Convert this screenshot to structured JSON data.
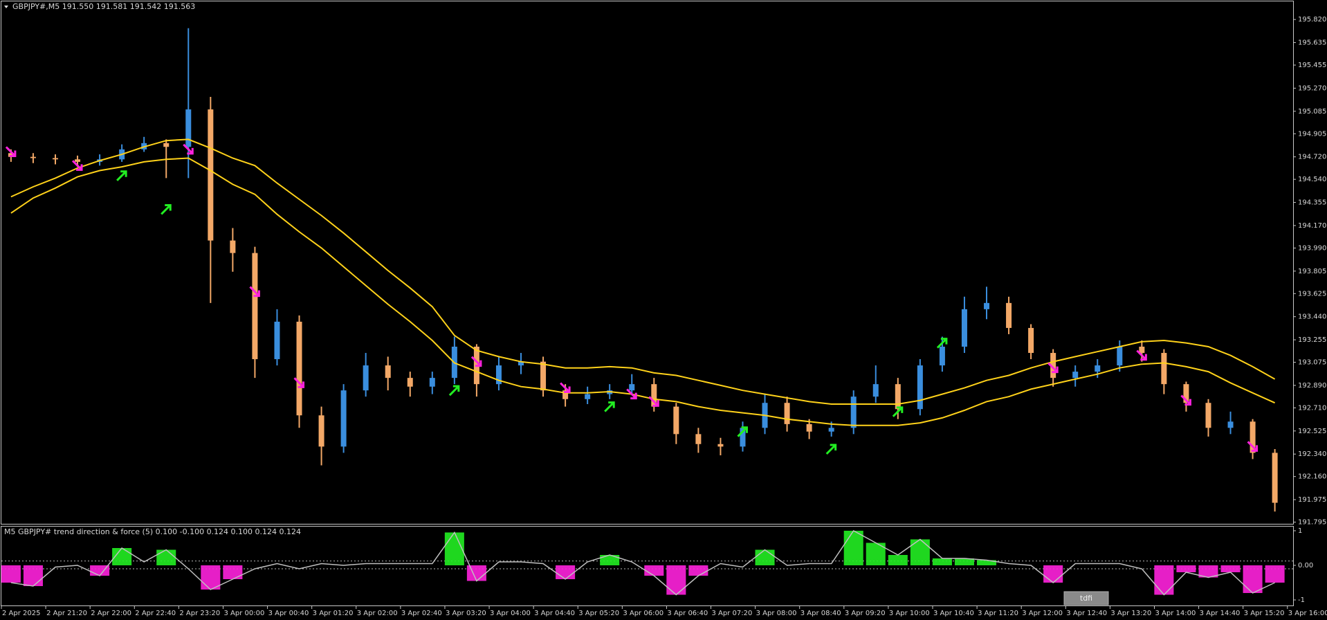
{
  "chart_data": {
    "type": "candlestick",
    "title": "GBPJPY#,M5  191.550 191.581 191.542 191.563",
    "colors": {
      "up": "#3a8ede",
      "down": "#f3a867",
      "band": "#ffd21a",
      "buy": "#22ee22",
      "sell": "#ff22dd",
      "background": "#000000",
      "axis": "#c8c8c8"
    },
    "x_labels": [
      "2 Apr 2025",
      "2 Apr 21:20",
      "2 Apr 22:00",
      "2 Apr 22:40",
      "2 Apr 23:20",
      "3 Apr 00:00",
      "3 Apr 00:40",
      "3 Apr 01:20",
      "3 Apr 02:00",
      "3 Apr 02:40",
      "3 Apr 03:20",
      "3 Apr 04:00",
      "3 Apr 04:40",
      "3 Apr 05:20",
      "3 Apr 06:00",
      "3 Apr 06:40",
      "3 Apr 07:20",
      "3 Apr 08:00",
      "3 Apr 08:40",
      "3 Apr 09:20",
      "3 Apr 10:00",
      "3 Apr 10:40",
      "3 Apr 11:20",
      "3 Apr 12:00",
      "3 Apr 12:40",
      "3 Apr 13:20",
      "3 Apr 14:00",
      "3 Apr 14:40",
      "3 Apr 15:20",
      "3 Apr 16:00"
    ],
    "open": [
      194.75,
      194.72,
      194.71,
      194.7,
      194.68,
      194.7,
      194.78,
      194.83,
      194.8,
      195.1,
      194.05,
      193.95,
      193.1,
      193.4,
      192.65,
      192.4,
      192.85,
      193.05,
      192.95,
      192.88,
      192.95,
      193.2,
      192.9,
      193.05,
      193.08,
      192.85,
      192.78,
      192.82,
      192.85,
      192.9,
      192.72,
      192.5,
      192.42,
      192.4,
      192.55,
      192.75,
      192.58,
      192.52,
      192.55,
      192.8,
      192.9,
      192.7,
      193.05,
      193.2,
      193.5,
      193.55,
      193.35,
      193.15,
      192.95,
      193.0,
      193.05,
      193.2,
      193.15,
      192.9,
      192.75,
      192.55,
      192.6,
      192.35
    ],
    "high": [
      194.78,
      194.75,
      194.74,
      194.73,
      194.74,
      194.82,
      194.88,
      194.86,
      195.75,
      195.2,
      194.15,
      194.0,
      193.5,
      193.45,
      192.72,
      192.9,
      193.15,
      193.12,
      193.0,
      193.0,
      193.28,
      193.22,
      193.12,
      193.15,
      193.12,
      192.9,
      192.88,
      192.9,
      192.98,
      192.95,
      192.75,
      192.55,
      192.47,
      192.6,
      192.82,
      192.8,
      192.62,
      192.6,
      192.85,
      193.05,
      192.95,
      193.1,
      193.28,
      193.6,
      193.68,
      193.6,
      193.38,
      193.18,
      193.05,
      193.1,
      193.25,
      193.25,
      193.18,
      192.92,
      192.78,
      192.68,
      192.62,
      192.38
    ],
    "low": [
      194.68,
      194.67,
      194.66,
      194.64,
      194.65,
      194.68,
      194.76,
      194.55,
      194.55,
      193.55,
      193.8,
      192.95,
      193.05,
      192.55,
      192.25,
      192.35,
      192.8,
      192.85,
      192.8,
      192.82,
      192.9,
      192.8,
      192.85,
      192.98,
      192.8,
      192.72,
      192.74,
      192.78,
      192.82,
      192.68,
      192.42,
      192.35,
      192.33,
      192.36,
      192.5,
      192.52,
      192.46,
      192.48,
      192.5,
      192.75,
      192.62,
      192.65,
      193.0,
      193.15,
      193.42,
      193.3,
      193.1,
      192.88,
      192.88,
      192.95,
      193.0,
      193.08,
      192.82,
      192.68,
      192.48,
      192.5,
      192.3,
      191.88
    ],
    "close": [
      194.72,
      194.71,
      194.7,
      194.68,
      194.7,
      194.78,
      194.83,
      194.8,
      195.1,
      194.05,
      193.95,
      193.1,
      193.4,
      192.65,
      192.4,
      192.85,
      193.05,
      192.95,
      192.88,
      192.95,
      193.2,
      192.9,
      193.05,
      193.08,
      192.85,
      192.78,
      192.82,
      192.85,
      192.9,
      192.72,
      192.5,
      192.42,
      192.4,
      192.55,
      192.75,
      192.58,
      192.52,
      192.55,
      192.8,
      192.9,
      192.7,
      193.05,
      193.2,
      193.5,
      193.55,
      193.35,
      193.15,
      192.95,
      193.0,
      193.05,
      193.2,
      193.15,
      192.9,
      192.75,
      192.55,
      192.6,
      192.35,
      191.95
    ],
    "band_upper": [
      194.4,
      194.48,
      194.55,
      194.63,
      194.69,
      194.74,
      194.8,
      194.85,
      194.86,
      194.79,
      194.71,
      194.65,
      194.51,
      194.38,
      194.25,
      194.11,
      193.96,
      193.81,
      193.67,
      193.52,
      193.29,
      193.17,
      193.12,
      193.08,
      193.06,
      193.03,
      193.03,
      193.04,
      193.03,
      192.99,
      192.97,
      192.93,
      192.89,
      192.85,
      192.82,
      192.79,
      192.76,
      192.74,
      192.74,
      192.74,
      192.74,
      192.77,
      192.82,
      192.87,
      192.93,
      192.97,
      193.03,
      193.08,
      193.12,
      193.16,
      193.2,
      193.24,
      193.25,
      193.23,
      193.2,
      193.13,
      193.04,
      192.94
    ],
    "band_lower": [
      194.27,
      194.39,
      194.47,
      194.56,
      194.61,
      194.64,
      194.68,
      194.7,
      194.71,
      194.61,
      194.5,
      194.42,
      194.26,
      194.12,
      193.99,
      193.84,
      193.69,
      193.54,
      193.4,
      193.25,
      193.07,
      193.0,
      192.93,
      192.88,
      192.86,
      192.83,
      192.83,
      192.84,
      192.82,
      192.78,
      192.76,
      192.72,
      192.69,
      192.67,
      192.65,
      192.62,
      192.6,
      192.58,
      192.57,
      192.57,
      192.57,
      192.59,
      192.63,
      192.69,
      192.76,
      192.8,
      192.86,
      192.9,
      192.94,
      192.98,
      193.03,
      193.06,
      193.07,
      193.04,
      193.0,
      192.91,
      192.83,
      192.75
    ],
    "buy_arrows": [
      null,
      null,
      null,
      null,
      null,
      194.57,
      null,
      194.3,
      null,
      null,
      null,
      null,
      null,
      null,
      null,
      null,
      null,
      null,
      null,
      null,
      192.85,
      null,
      null,
      null,
      null,
      null,
      null,
      192.72,
      null,
      null,
      null,
      null,
      null,
      192.52,
      null,
      null,
      null,
      192.38,
      null,
      null,
      192.68,
      null,
      193.23,
      null,
      null,
      null,
      null,
      null,
      null,
      null,
      null,
      null,
      null,
      null,
      null,
      null,
      null,
      null
    ],
    "sell_arrows": [
      194.76,
      null,
      null,
      194.65,
      null,
      null,
      null,
      null,
      194.78,
      null,
      null,
      193.64,
      null,
      192.91,
      null,
      null,
      null,
      null,
      null,
      null,
      null,
      193.08,
      null,
      null,
      null,
      192.87,
      null,
      null,
      192.82,
      192.76,
      null,
      null,
      null,
      null,
      null,
      null,
      null,
      null,
      null,
      null,
      null,
      null,
      null,
      null,
      null,
      null,
      null,
      193.03,
      null,
      null,
      null,
      193.13,
      null,
      192.77,
      null,
      null,
      192.4,
      null
    ],
    "ylim": [
      191.787,
      195.965
    ],
    "yticks": [
      {
        "value": 195.82,
        "label": "195.820"
      },
      195.635,
      195.455,
      {
        "value": 195.27,
        "label": "195.270"
      },
      195.085,
      194.905,
      {
        "value": 194.72,
        "label": "194.720"
      },
      {
        "value": 194.54,
        "label": "194.540"
      },
      194.355,
      {
        "value": 194.17,
        "label": "194.170"
      },
      {
        "value": 193.99,
        "label": "193.990"
      },
      193.805,
      193.625,
      {
        "value": 193.44,
        "label": "193.440"
      },
      193.255,
      193.075,
      {
        "value": 192.89,
        "label": "192.890"
      },
      {
        "value": 192.71,
        "label": "192.710"
      },
      192.525,
      {
        "value": 192.34,
        "label": "192.340"
      },
      {
        "value": 192.16,
        "label": "192.160"
      },
      191.975,
      191.795
    ],
    "indicator": {
      "title": "M5 GBPJPY# trend direction & force (5) 0.100 -0.100 0.124 0.100 0.124 0.124",
      "values": [
        -0.5,
        -0.6,
        -0.05,
        0.0,
        -0.3,
        0.5,
        0.1,
        0.45,
        -0.1,
        -0.7,
        -0.4,
        -0.1,
        0.05,
        -0.1,
        0.05,
        0.0,
        0.05,
        0.05,
        0.05,
        0.05,
        0.95,
        -0.45,
        0.1,
        0.1,
        0.05,
        -0.4,
        0.1,
        0.3,
        0.1,
        -0.3,
        -0.85,
        -0.3,
        0.05,
        -0.05,
        0.45,
        0.0,
        0.05,
        0.05,
        1.0,
        0.65,
        0.3,
        0.75,
        0.2,
        0.2,
        0.15,
        0.05,
        0.0,
        -0.5,
        0.05,
        0.05,
        0.05,
        -0.1,
        -0.85,
        -0.2,
        -0.35,
        -0.2,
        -0.8,
        -0.5
      ],
      "levels": [
        0.124,
        -0.1
      ],
      "ylim": [
        -1.16,
        1.14
      ],
      "yticks": [
        1,
        {
          "value": 0,
          "label": "0.00"
        },
        -1
      ],
      "line_color": "#c0c0c0"
    },
    "button": "tdfi"
  }
}
